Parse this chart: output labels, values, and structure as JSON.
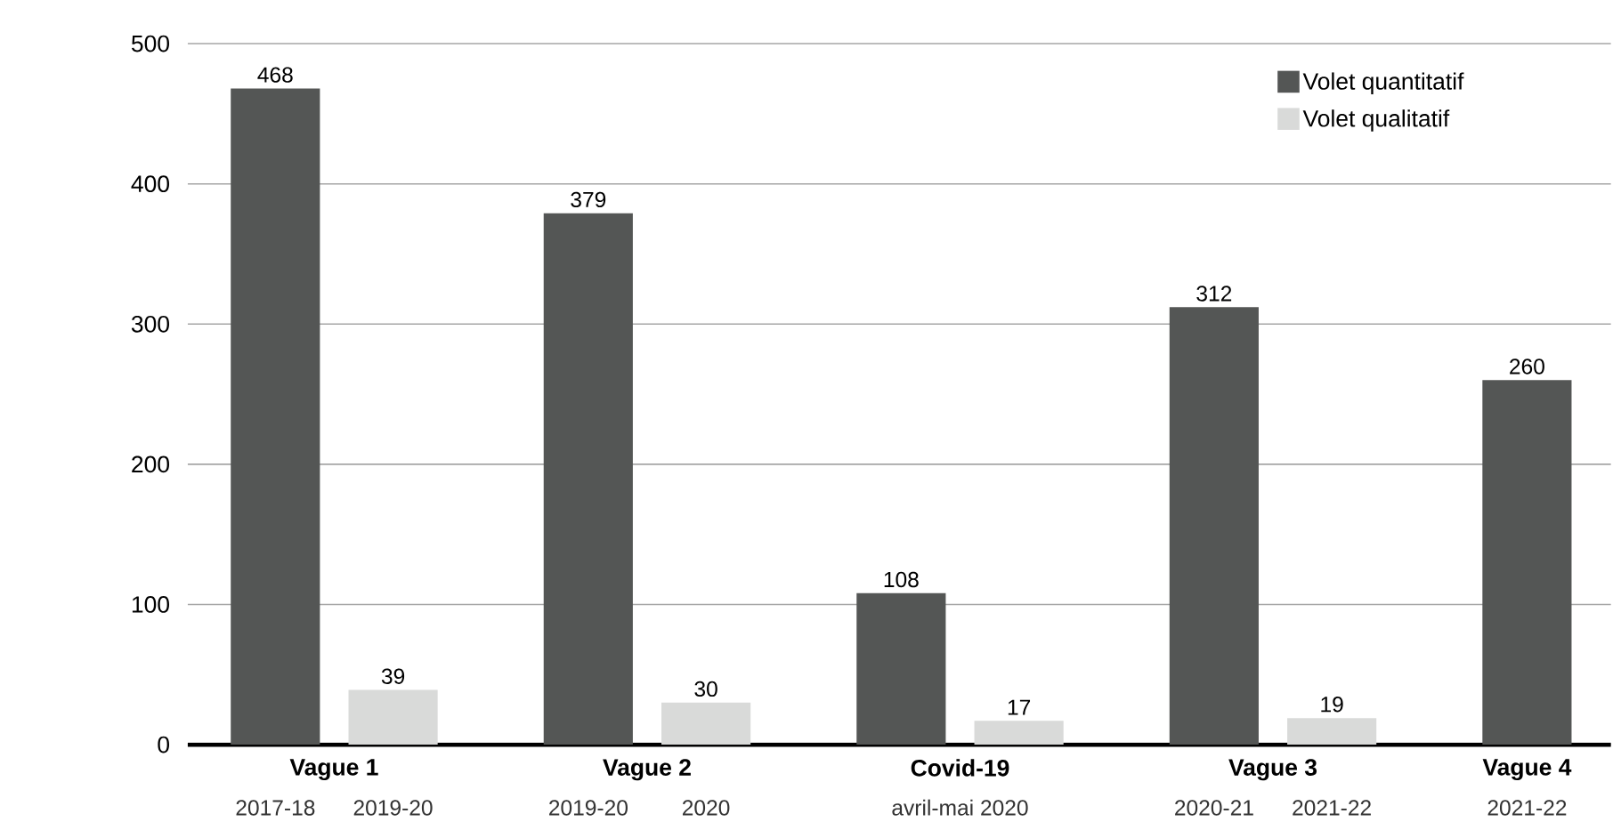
{
  "chart_data": {
    "type": "bar",
    "categories": [
      "Vague 1",
      "Vague 2",
      "Covid-19",
      "Vague 3",
      "Vague 4"
    ],
    "series": [
      {
        "name": "Volet quantitatif",
        "color": "#545655",
        "values": [
          468,
          379,
          108,
          312,
          260
        ]
      },
      {
        "name": "Volet qualitatif",
        "color": "#d9dad9",
        "values": [
          39,
          30,
          17,
          19,
          null
        ]
      }
    ],
    "annotations": [
      "2017-18",
      "2019-20",
      "2019-20",
      "2020",
      "avril-mai 2020",
      "2020-21",
      "2021-22",
      "2021-22"
    ],
    "ylim": [
      0,
      500
    ],
    "yticks": [
      0,
      100,
      200,
      300,
      400,
      500
    ],
    "grid": "y",
    "legend": "top right",
    "data_labels": true
  }
}
